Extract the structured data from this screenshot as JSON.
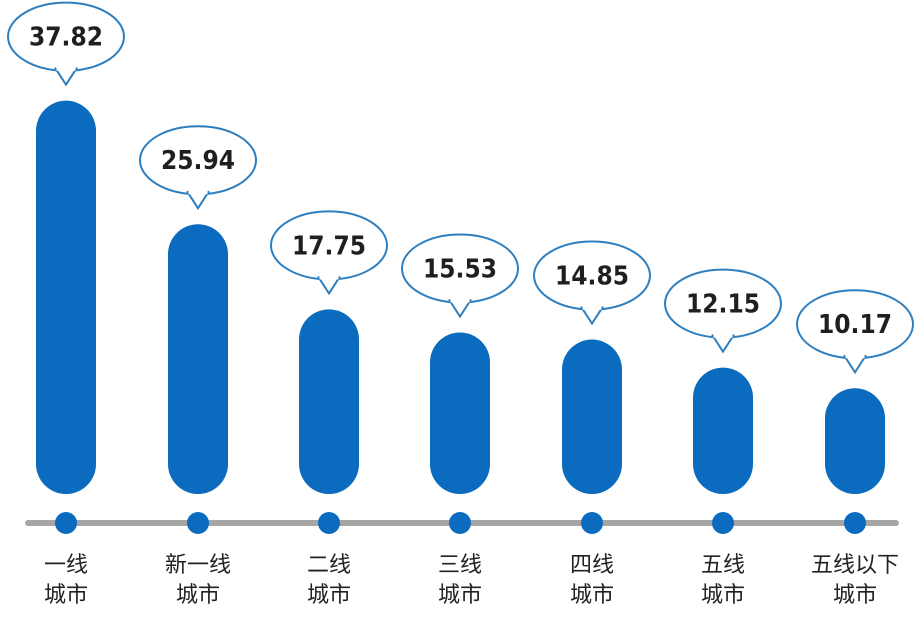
{
  "chart_data": {
    "type": "bar",
    "categories": [
      [
        "一线",
        "城市"
      ],
      [
        "新一线",
        "城市"
      ],
      [
        "二线",
        "城市"
      ],
      [
        "三线",
        "城市"
      ],
      [
        "四线",
        "城市"
      ],
      [
        "五线",
        "城市"
      ],
      [
        "五线以下",
        "城市"
      ]
    ],
    "values": [
      37.82,
      25.94,
      17.75,
      15.53,
      14.85,
      12.15,
      10.17
    ],
    "value_labels": [
      "37.82",
      "25.94",
      "17.75",
      "15.53",
      "14.85",
      "12.15",
      "10.17"
    ],
    "title": "",
    "xlabel": "",
    "ylabel": "",
    "ylim": [
      0,
      40
    ],
    "grid": false,
    "legend": "none",
    "colors": {
      "bar": "#0A6BBF",
      "bubble_border": "#2E7FC0",
      "axis": "#A6A6A6",
      "text": "#1F1F1F"
    }
  }
}
